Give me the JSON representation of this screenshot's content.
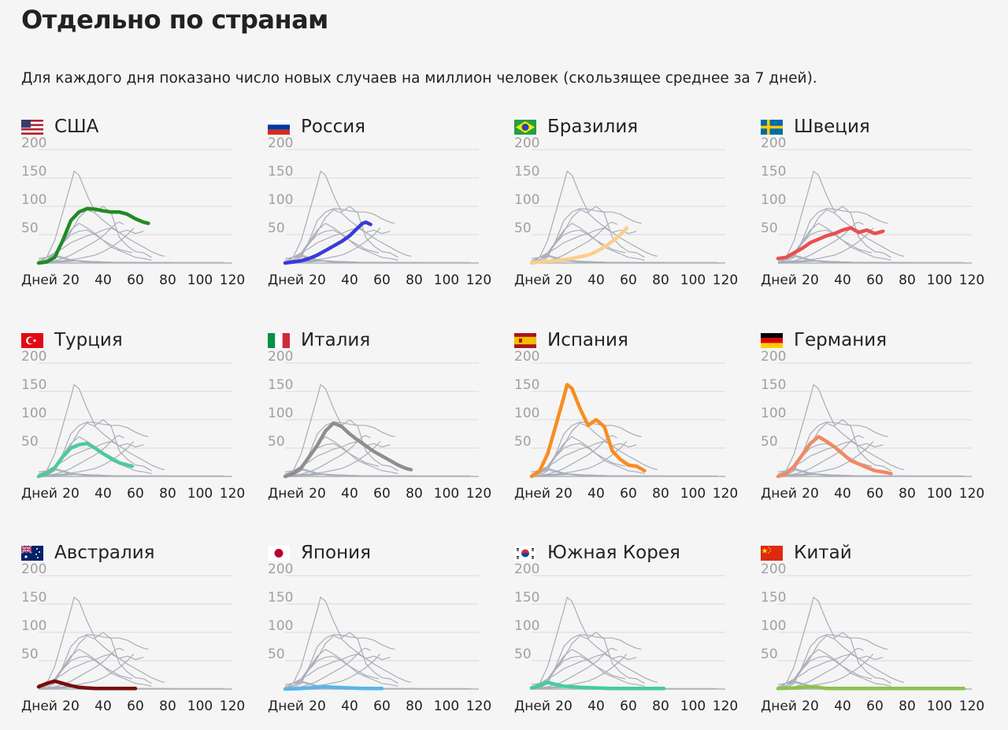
{
  "header": {
    "title": "Отдельно по странам",
    "subtitle": "Для каждого дня показано число новых случаев на миллион человек (скользящее среднее за 7 дней)."
  },
  "axis": {
    "y_ticks": [
      "200",
      "150",
      "100",
      "50"
    ],
    "x_prefix": "Дней",
    "x_ticks": [
      "20",
      "40",
      "60",
      "80",
      "100",
      "120"
    ]
  },
  "chart_data": {
    "type": "line",
    "ylim": [
      0,
      200
    ],
    "xlim": [
      0,
      120
    ],
    "series": [
      {
        "name": "США",
        "color": "#1f8c22",
        "x": [
          0,
          5,
          10,
          15,
          20,
          25,
          30,
          35,
          40,
          45,
          50,
          55,
          60,
          65,
          68
        ],
        "y": [
          0,
          2,
          10,
          40,
          75,
          90,
          96,
          95,
          92,
          90,
          90,
          86,
          78,
          72,
          70
        ]
      },
      {
        "name": "Россия",
        "color": "#3a3ad8",
        "x": [
          0,
          5,
          10,
          15,
          20,
          25,
          30,
          35,
          40,
          45,
          48,
          50,
          53
        ],
        "y": [
          0,
          2,
          4,
          8,
          14,
          22,
          30,
          38,
          48,
          62,
          70,
          72,
          68
        ]
      },
      {
        "name": "Бразилия",
        "color": "#fdcd8c",
        "x": [
          0,
          5,
          10,
          15,
          20,
          25,
          30,
          35,
          40,
          45,
          50,
          55,
          59
        ],
        "y": [
          0,
          2,
          3,
          4,
          6,
          8,
          11,
          14,
          20,
          28,
          38,
          50,
          62
        ]
      },
      {
        "name": "Швеция",
        "color": "#e94f50",
        "x": [
          0,
          5,
          10,
          15,
          20,
          25,
          30,
          35,
          40,
          45,
          50,
          55,
          60,
          65
        ],
        "y": [
          8,
          10,
          18,
          26,
          36,
          42,
          48,
          52,
          58,
          62,
          54,
          58,
          52,
          56
        ]
      },
      {
        "name": "Турция",
        "color": "#4ec99c",
        "x": [
          0,
          5,
          10,
          15,
          20,
          25,
          30,
          35,
          40,
          45,
          50,
          55,
          58
        ],
        "y": [
          0,
          5,
          15,
          35,
          50,
          56,
          58,
          50,
          40,
          32,
          24,
          20,
          18
        ]
      },
      {
        "name": "Италия",
        "color": "#8e8e8e",
        "x": [
          0,
          5,
          10,
          15,
          20,
          25,
          30,
          35,
          40,
          45,
          50,
          55,
          60,
          65,
          70,
          75,
          78
        ],
        "y": [
          0,
          5,
          15,
          35,
          55,
          80,
          94,
          88,
          75,
          64,
          54,
          44,
          36,
          28,
          20,
          14,
          12
        ]
      },
      {
        "name": "Испания",
        "color": "#f98c23",
        "x": [
          0,
          5,
          10,
          15,
          20,
          22,
          25,
          30,
          35,
          40,
          45,
          50,
          55,
          60,
          65,
          70
        ],
        "y": [
          0,
          10,
          40,
          90,
          140,
          162,
          155,
          120,
          90,
          100,
          88,
          45,
          30,
          20,
          18,
          10
        ]
      },
      {
        "name": "Германия",
        "color": "#ef8a62",
        "x": [
          0,
          5,
          10,
          15,
          20,
          25,
          30,
          35,
          40,
          45,
          50,
          55,
          60,
          65,
          70
        ],
        "y": [
          0,
          5,
          18,
          38,
          58,
          70,
          62,
          52,
          40,
          28,
          22,
          16,
          10,
          8,
          5
        ]
      },
      {
        "name": "Австралия",
        "color": "#7a0c0c",
        "x": [
          0,
          5,
          10,
          15,
          20,
          25,
          30,
          35,
          40,
          45,
          50,
          55,
          60
        ],
        "y": [
          4,
          10,
          14,
          10,
          6,
          3,
          2,
          1,
          1,
          1,
          1,
          1,
          1
        ]
      },
      {
        "name": "Япония",
        "color": "#5ab4e8",
        "x": [
          0,
          10,
          20,
          25,
          30,
          40,
          50,
          60
        ],
        "y": [
          0,
          1,
          3,
          4,
          3,
          2,
          1,
          1
        ]
      },
      {
        "name": "Южная Корея",
        "color": "#45cc9c",
        "x": [
          0,
          5,
          10,
          15,
          20,
          30,
          40,
          50,
          60,
          70,
          80,
          82
        ],
        "y": [
          2,
          6,
          12,
          8,
          5,
          3,
          2,
          1,
          1,
          1,
          1,
          1
        ]
      },
      {
        "name": "Китай",
        "color": "#8bc34a",
        "x": [
          0,
          10,
          20,
          25,
          30,
          40,
          60,
          80,
          100,
          115
        ],
        "y": [
          1,
          2,
          4,
          3,
          1,
          1,
          1,
          1,
          1,
          1
        ]
      }
    ]
  },
  "countries": [
    {
      "name": "США",
      "flag": "us-flag-icon"
    },
    {
      "name": "Россия",
      "flag": "ru-flag-icon"
    },
    {
      "name": "Бразилия",
      "flag": "br-flag-icon"
    },
    {
      "name": "Швеция",
      "flag": "se-flag-icon"
    },
    {
      "name": "Турция",
      "flag": "tr-flag-icon"
    },
    {
      "name": "Италия",
      "flag": "it-flag-icon"
    },
    {
      "name": "Испания",
      "flag": "es-flag-icon"
    },
    {
      "name": "Германия",
      "flag": "de-flag-icon"
    },
    {
      "name": "Австралия",
      "flag": "au-flag-icon"
    },
    {
      "name": "Япония",
      "flag": "jp-flag-icon"
    },
    {
      "name": "Южная Корея",
      "flag": "kr-flag-icon"
    },
    {
      "name": "Китай",
      "flag": "cn-flag-icon"
    }
  ]
}
